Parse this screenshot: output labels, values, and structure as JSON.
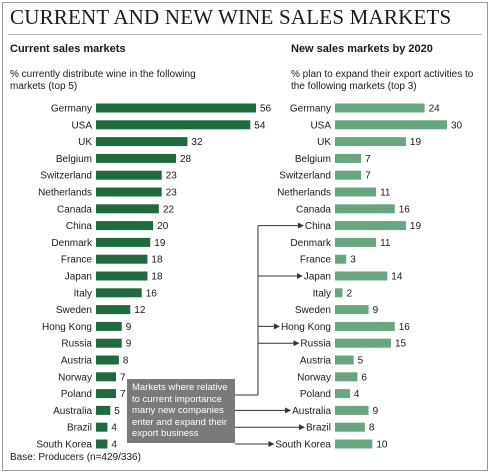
{
  "header": {
    "title": "CURRENT AND NEW WINE SALES MARKETS",
    "footer": "Base: Producers (n=429/336)",
    "callout": "Markets where relative to current importance many new companies enter and expand their export business"
  },
  "colors": {
    "current": "#1f6b3f",
    "new": "#6aa581",
    "arrow": "#333333"
  },
  "chart_data": [
    {
      "type": "bar",
      "orientation": "horizontal",
      "title": "Current sales markets",
      "subtitle": "% currently distribute wine in the following markets (top 5)",
      "categories": [
        "Germany",
        "USA",
        "UK",
        "Belgium",
        "Switzerland",
        "Netherlands",
        "Canada",
        "China",
        "Denmark",
        "France",
        "Japan",
        "Italy",
        "Sweden",
        "Hong Kong",
        "Russia",
        "Austria",
        "Norway",
        "Poland",
        "Australia",
        "Brazil",
        "South Korea"
      ],
      "values": [
        56,
        54,
        32,
        28,
        23,
        23,
        22,
        20,
        19,
        18,
        18,
        16,
        12,
        9,
        9,
        8,
        7,
        7,
        5,
        4,
        4
      ],
      "xlim": [
        0,
        56
      ]
    },
    {
      "type": "bar",
      "orientation": "horizontal",
      "title": "New sales markets by 2020",
      "subtitle": "% plan to expand their export activities to the following markets (top 3)",
      "categories": [
        "Germany",
        "USA",
        "UK",
        "Belgium",
        "Switzerland",
        "Netherlands",
        "Canada",
        "China",
        "Denmark",
        "France",
        "Japan",
        "Italy",
        "Sweden",
        "Hong Kong",
        "Russia",
        "Austria",
        "Norway",
        "Poland",
        "Australia",
        "Brazil",
        "South Korea"
      ],
      "values": [
        24,
        30,
        19,
        7,
        7,
        11,
        16,
        19,
        11,
        3,
        14,
        2,
        9,
        16,
        15,
        5,
        6,
        4,
        9,
        8,
        10
      ],
      "xlim": [
        0,
        30
      ],
      "highlighted": [
        "China",
        "Japan",
        "Hong Kong",
        "Russia",
        "Australia",
        "Brazil",
        "South Korea"
      ]
    }
  ]
}
